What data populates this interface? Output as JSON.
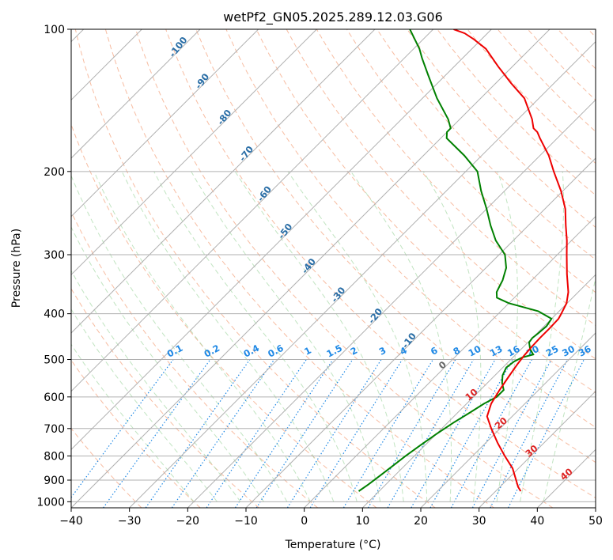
{
  "chart_data": {
    "type": "skewt",
    "title": "wetPf2_GN05.2025.289.12.03.G06",
    "xlabel": "Temperature (°C)",
    "ylabel": "Pressure (hPa)",
    "xlim": [
      -40,
      50
    ],
    "ylim": [
      1030,
      100
    ],
    "x_ticks": [
      "−40",
      "−30",
      "−20",
      "−10",
      "0",
      "10",
      "20",
      "30",
      "40",
      "50"
    ],
    "x_tick_values": [
      -40,
      -30,
      -20,
      -10,
      0,
      10,
      20,
      30,
      40,
      50
    ],
    "y_ticks": [
      "100",
      "200",
      "300",
      "400",
      "500",
      "600",
      "700",
      "800",
      "900",
      "1000"
    ],
    "y_tick_values": [
      100,
      200,
      300,
      400,
      500,
      600,
      700,
      800,
      900,
      1000
    ],
    "grid": true,
    "temperature_profile": {
      "name": "Temperature",
      "color": "#ee0000",
      "points": [
        [
          950,
          34.3
        ],
        [
          930,
          33.1
        ],
        [
          900,
          31.6
        ],
        [
          850,
          29.0
        ],
        [
          800,
          25.5
        ],
        [
          750,
          22.0
        ],
        [
          700,
          18.5
        ],
        [
          660,
          15.7
        ],
        [
          620,
          14.2
        ],
        [
          580,
          13.3
        ],
        [
          540,
          12.5
        ],
        [
          510,
          11.9
        ],
        [
          490,
          11.6
        ],
        [
          470,
          11.4
        ],
        [
          450,
          11.3
        ],
        [
          430,
          11.3
        ],
        [
          410,
          11.2
        ],
        [
          400,
          10.8
        ],
        [
          380,
          9.9
        ],
        [
          360,
          8.3
        ],
        [
          330,
          5.0
        ],
        [
          300,
          1.6
        ],
        [
          280,
          -0.8
        ],
        [
          260,
          -3.6
        ],
        [
          240,
          -6.5
        ],
        [
          220,
          -10.3
        ],
        [
          200,
          -14.9
        ],
        [
          185,
          -18.5
        ],
        [
          170,
          -23.0
        ],
        [
          165,
          -24.5
        ],
        [
          162,
          -25.8
        ],
        [
          155,
          -27.6
        ],
        [
          140,
          -32.5
        ],
        [
          130,
          -37.4
        ],
        [
          120,
          -42.4
        ],
        [
          110,
          -47.6
        ],
        [
          105,
          -51.3
        ],
        [
          102,
          -53.9
        ],
        [
          100,
          -56.5
        ]
      ]
    },
    "dewpoint_profile": {
      "name": "Dewpoint",
      "color": "#008000",
      "points": [
        [
          950,
          6.5
        ],
        [
          920,
          7.0
        ],
        [
          880,
          7.5
        ],
        [
          840,
          8.0
        ],
        [
          800,
          8.5
        ],
        [
          760,
          9.2
        ],
        [
          720,
          10.0
        ],
        [
          680,
          11.0
        ],
        [
          650,
          12.0
        ],
        [
          620,
          13.0
        ],
        [
          600,
          14.0
        ],
        [
          580,
          14.0
        ],
        [
          560,
          12.5
        ],
        [
          540,
          11.3
        ],
        [
          520,
          10.6
        ],
        [
          505,
          10.9
        ],
        [
          495,
          11.6
        ],
        [
          488,
          13.0
        ],
        [
          475,
          11.5
        ],
        [
          460,
          10.2
        ],
        [
          450,
          10.0
        ],
        [
          440,
          10.2
        ],
        [
          425,
          10.4
        ],
        [
          410,
          10.0
        ],
        [
          395,
          6.4
        ],
        [
          380,
          0.0
        ],
        [
          370,
          -3.0
        ],
        [
          360,
          -4.0
        ],
        [
          350,
          -4.5
        ],
        [
          340,
          -5.0
        ],
        [
          320,
          -6.5
        ],
        [
          300,
          -9.0
        ],
        [
          280,
          -13.0
        ],
        [
          260,
          -16.5
        ],
        [
          240,
          -20.0
        ],
        [
          220,
          -24.0
        ],
        [
          200,
          -28.0
        ],
        [
          185,
          -33.0
        ],
        [
          170,
          -39.0
        ],
        [
          165,
          -40.0
        ],
        [
          162,
          -40.0
        ],
        [
          155,
          -42.0
        ],
        [
          140,
          -47.5
        ],
        [
          125,
          -53.0
        ],
        [
          115,
          -57.0
        ],
        [
          110,
          -59.0
        ],
        [
          100,
          -64.0
        ]
      ]
    },
    "isotherm_labels": {
      "color": "#2a6ea6",
      "items": [
        {
          "text": "-100",
          "t": -100,
          "p": 110
        },
        {
          "text": "-90",
          "t": -90,
          "p": 130
        },
        {
          "text": "-80",
          "t": -80,
          "p": 155
        },
        {
          "text": "-70",
          "t": -70,
          "p": 185
        },
        {
          "text": "-60",
          "t": -60,
          "p": 225
        },
        {
          "text": "-50",
          "t": -50,
          "p": 270
        },
        {
          "text": "-40",
          "t": -40,
          "p": 320
        },
        {
          "text": "-30",
          "t": -30,
          "p": 368
        },
        {
          "text": "-20",
          "t": -20,
          "p": 408
        },
        {
          "text": "-10",
          "t": -10,
          "p": 460
        }
      ]
    },
    "mixing_ratio_labels": {
      "color": "#1e88e5",
      "items": [
        {
          "text": "0.1",
          "w": 0.1
        },
        {
          "text": "0.2",
          "w": 0.2
        },
        {
          "text": "0.4",
          "w": 0.4
        },
        {
          "text": "0.6",
          "w": 0.6
        },
        {
          "text": "1",
          "w": 1
        },
        {
          "text": "1.5",
          "w": 1.5
        },
        {
          "text": "2",
          "w": 2
        },
        {
          "text": "3",
          "w": 3
        },
        {
          "text": "4",
          "w": 4
        },
        {
          "text": "6",
          "w": 6
        },
        {
          "text": "8",
          "w": 8
        },
        {
          "text": "10",
          "w": 10
        },
        {
          "text": "13",
          "w": 13
        },
        {
          "text": "16",
          "w": 16
        },
        {
          "text": "20",
          "w": 20
        },
        {
          "text": "25",
          "w": 25
        },
        {
          "text": "30",
          "w": 30
        },
        {
          "text": "36",
          "w": 36
        }
      ]
    },
    "positive_isotherm_labels": {
      "color": "#dd2222",
      "items": [
        {
          "text": "10",
          "t": 10,
          "p": 600
        },
        {
          "text": "20",
          "t": 20,
          "p": 690
        },
        {
          "text": "30",
          "t": 30,
          "p": 790
        },
        {
          "text": "40",
          "t": 40,
          "p": 885
        }
      ]
    },
    "zero_isotherm_label": {
      "text": "0",
      "t": 0,
      "p": 520,
      "color": "#666666"
    }
  }
}
